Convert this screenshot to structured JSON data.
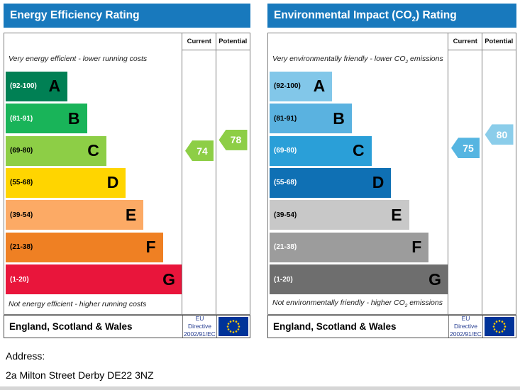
{
  "address": {
    "label": "Address:",
    "value": "2a Milton Street Derby DE22 3NZ"
  },
  "chart_data": [
    {
      "type": "bar",
      "subtype": "epc-rating-scale",
      "title_html": "Energy Efficiency Rating",
      "header_color": "#1879bd",
      "columns": [
        "Current",
        "Potential"
      ],
      "top_note_html": "Very energy efficient - lower running costs",
      "bottom_note_html": "Not energy efficient - higher running costs",
      "scale": [
        1,
        100
      ],
      "bands": [
        {
          "letter": "A",
          "range_label": "(92-100)",
          "lo": 92,
          "hi": 100,
          "color": "#008054",
          "range_text_color": "#ffffff",
          "width_pct": 35
        },
        {
          "letter": "B",
          "range_label": "(81-91)",
          "lo": 81,
          "hi": 91,
          "color": "#19b459",
          "range_text_color": "#ffffff",
          "width_pct": 46
        },
        {
          "letter": "C",
          "range_label": "(69-80)",
          "lo": 69,
          "hi": 80,
          "color": "#8dce46",
          "range_text_color": "#000000",
          "width_pct": 57
        },
        {
          "letter": "D",
          "range_label": "(55-68)",
          "lo": 55,
          "hi": 68,
          "color": "#ffd500",
          "range_text_color": "#000000",
          "width_pct": 68
        },
        {
          "letter": "E",
          "range_label": "(39-54)",
          "lo": 39,
          "hi": 54,
          "color": "#fcaa65",
          "range_text_color": "#000000",
          "width_pct": 78
        },
        {
          "letter": "F",
          "range_label": "(21-38)",
          "lo": 21,
          "hi": 38,
          "color": "#ef8023",
          "range_text_color": "#000000",
          "width_pct": 89
        },
        {
          "letter": "G",
          "range_label": "(1-20)",
          "lo": 1,
          "hi": 20,
          "color": "#e9153b",
          "range_text_color": "#ffffff",
          "width_pct": 100
        }
      ],
      "current": {
        "label": "Current",
        "value": 74,
        "color": "#8dce46"
      },
      "potential": {
        "label": "Potential",
        "value": 78,
        "color": "#8dce46"
      },
      "footer": {
        "region": "England, Scotland & Wales",
        "directive_line1": "EU Directive",
        "directive_line2": "2002/91/EC",
        "flag_field_color": "#003399",
        "flag_star_color": "#ffcc00"
      }
    },
    {
      "type": "bar",
      "subtype": "epc-rating-scale",
      "title_html": "Environmental Impact (CO<sub>2</sub>) Rating",
      "header_color": "#1879bd",
      "columns": [
        "Current",
        "Potential"
      ],
      "top_note_html": "Very environmentally friendly - lower CO<sub>2</sub> emissions",
      "bottom_note_html": "Not environmentally friendly - higher CO<sub>2</sub> emissions",
      "scale": [
        1,
        100
      ],
      "bands": [
        {
          "letter": "A",
          "range_label": "(92-100)",
          "lo": 92,
          "hi": 100,
          "color": "#82c7e9",
          "range_text_color": "#000000",
          "width_pct": 35
        },
        {
          "letter": "B",
          "range_label": "(81-91)",
          "lo": 81,
          "hi": 91,
          "color": "#5ab2e0",
          "range_text_color": "#000000",
          "width_pct": 46
        },
        {
          "letter": "C",
          "range_label": "(69-80)",
          "lo": 69,
          "hi": 80,
          "color": "#2a9fd8",
          "range_text_color": "#ffffff",
          "width_pct": 57
        },
        {
          "letter": "D",
          "range_label": "(55-68)",
          "lo": 55,
          "hi": 68,
          "color": "#0f70b4",
          "range_text_color": "#ffffff",
          "width_pct": 68
        },
        {
          "letter": "E",
          "range_label": "(39-54)",
          "lo": 39,
          "hi": 54,
          "color": "#c8c8c8",
          "range_text_color": "#000000",
          "width_pct": 78
        },
        {
          "letter": "F",
          "range_label": "(21-38)",
          "lo": 21,
          "hi": 38,
          "color": "#9c9c9c",
          "range_text_color": "#ffffff",
          "width_pct": 89
        },
        {
          "letter": "G",
          "range_label": "(1-20)",
          "lo": 1,
          "hi": 20,
          "color": "#6e6e6e",
          "range_text_color": "#ffffff",
          "width_pct": 100
        }
      ],
      "current": {
        "label": "Current",
        "value": 75,
        "color": "#56b5e1"
      },
      "potential": {
        "label": "Potential",
        "value": 80,
        "color": "#8bcdea"
      },
      "footer": {
        "region": "England, Scotland & Wales",
        "directive_line1": "EU Directive",
        "directive_line2": "2002/91/EC",
        "flag_field_color": "#003399",
        "flag_star_color": "#ffcc00"
      }
    }
  ]
}
